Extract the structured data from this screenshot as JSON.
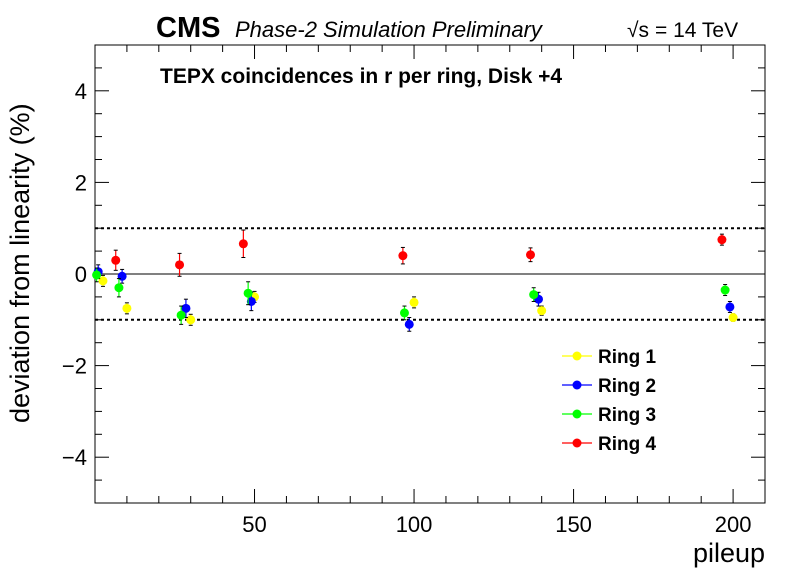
{
  "header": {
    "experiment": "CMS",
    "status": "Phase-2 Simulation Preliminary",
    "energy_sqrt": "√s",
    "energy_value": "= 14 TeV"
  },
  "chart_data": {
    "type": "scatter",
    "title": "TEPX coincidences in r per ring, Disk +4",
    "xlabel": "pileup",
    "ylabel": "deviation from linearity (%)",
    "xlim": [
      0,
      210
    ],
    "ylim": [
      -5,
      5
    ],
    "xticks": [
      50,
      100,
      150,
      200
    ],
    "yticks": [
      -4,
      -2,
      0,
      2,
      4
    ],
    "x_tick_labels": [
      "50",
      "100",
      "150",
      "200"
    ],
    "y_tick_labels": [
      "−4",
      "−2",
      "0",
      "2",
      "4"
    ],
    "reference_lines": [
      {
        "y": 0,
        "style": "solid"
      },
      {
        "y": 1,
        "style": "dotted"
      },
      {
        "y": -1,
        "style": "dotted"
      }
    ],
    "grid": false,
    "legend_position": "bottom-right",
    "series": [
      {
        "name": "Ring 1",
        "color": "#ffff00",
        "x": [
          2.5,
          10,
          30,
          50,
          100,
          140,
          200
        ],
        "y": [
          -0.15,
          -0.75,
          -1.0,
          -0.5,
          -0.62,
          -0.8,
          -0.95
        ],
        "err": [
          0.12,
          0.12,
          0.12,
          0.12,
          0.12,
          0.1,
          0.08
        ]
      },
      {
        "name": "Ring 2",
        "color": "#0000ff",
        "x": [
          1,
          8.5,
          28.5,
          49,
          98.5,
          139,
          199
        ],
        "y": [
          0.05,
          -0.05,
          -0.75,
          -0.6,
          -1.1,
          -0.55,
          -0.72
        ],
        "err": [
          0.15,
          0.15,
          0.2,
          0.2,
          0.15,
          0.15,
          0.12
        ]
      },
      {
        "name": "Ring 3",
        "color": "#00ff00",
        "x": [
          0.5,
          7.5,
          27,
          48,
          97,
          137.5,
          197.5
        ],
        "y": [
          -0.02,
          -0.3,
          -0.9,
          -0.42,
          -0.85,
          -0.45,
          -0.35
        ],
        "err": [
          0.15,
          0.2,
          0.2,
          0.25,
          0.15,
          0.15,
          0.12
        ]
      },
      {
        "name": "Ring 4",
        "color": "#ff0000",
        "x": [
          6.5,
          26.5,
          46.5,
          96.5,
          136.5,
          196.5
        ],
        "y": [
          0.3,
          0.2,
          0.66,
          0.4,
          0.42,
          0.75
        ],
        "err": [
          0.22,
          0.25,
          0.3,
          0.18,
          0.15,
          0.12
        ]
      }
    ]
  }
}
